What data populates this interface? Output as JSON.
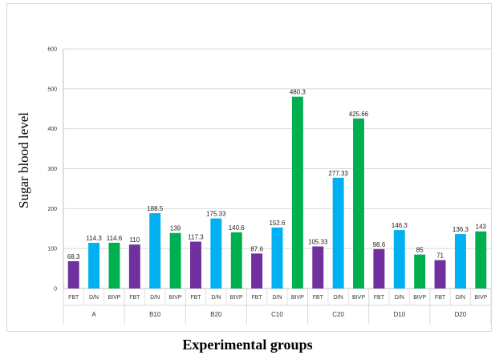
{
  "chart_data": {
    "type": "bar",
    "xlabel": "Experimental groups",
    "ylabel": "Sugar blood level",
    "ylim": [
      0,
      600
    ],
    "yticks": [
      0,
      100,
      200,
      300,
      400,
      500,
      600
    ],
    "grid": true,
    "groups": [
      {
        "name": "A",
        "categories": [
          "FBT",
          "D/N",
          "BIVP"
        ],
        "values": [
          68.3,
          114.3,
          114.6
        ],
        "labels": [
          "68.3",
          "114.3",
          "114.6"
        ]
      },
      {
        "name": "B10",
        "categories": [
          "FBT",
          "D/N",
          "BIVP"
        ],
        "values": [
          110,
          188.5,
          139
        ],
        "labels": [
          "110",
          "188.5",
          "139"
        ]
      },
      {
        "name": "B20",
        "categories": [
          "FBT",
          "D/N",
          "BIVP"
        ],
        "values": [
          117.3,
          175.33,
          140.6
        ],
        "labels": [
          "117.3",
          "175.33",
          "140.6"
        ]
      },
      {
        "name": "C10",
        "categories": [
          "FBT",
          "D/N",
          "BIVP"
        ],
        "values": [
          87.6,
          152.6,
          480.3
        ],
        "labels": [
          "87.6",
          "152.6",
          "480.3"
        ]
      },
      {
        "name": "C20",
        "categories": [
          "FBT",
          "D/N",
          "BIVP"
        ],
        "values": [
          105.33,
          277.33,
          425.66
        ],
        "labels": [
          "105.33",
          "277.33",
          "425.66"
        ]
      },
      {
        "name": "D10",
        "categories": [
          "FBT",
          "D/N",
          "BIVP"
        ],
        "values": [
          98.6,
          146.3,
          85
        ],
        "labels": [
          "98.6",
          "146.3",
          "85"
        ]
      },
      {
        "name": "D20",
        "categories": [
          "FBT",
          "D/N",
          "BIVP"
        ],
        "values": [
          71,
          136.3,
          143
        ],
        "labels": [
          "71",
          "136.3",
          "143"
        ]
      }
    ],
    "colors": {
      "FBT": "#7030a0",
      "D/N": "#00b0f0",
      "BIVP": "#00b050"
    }
  }
}
